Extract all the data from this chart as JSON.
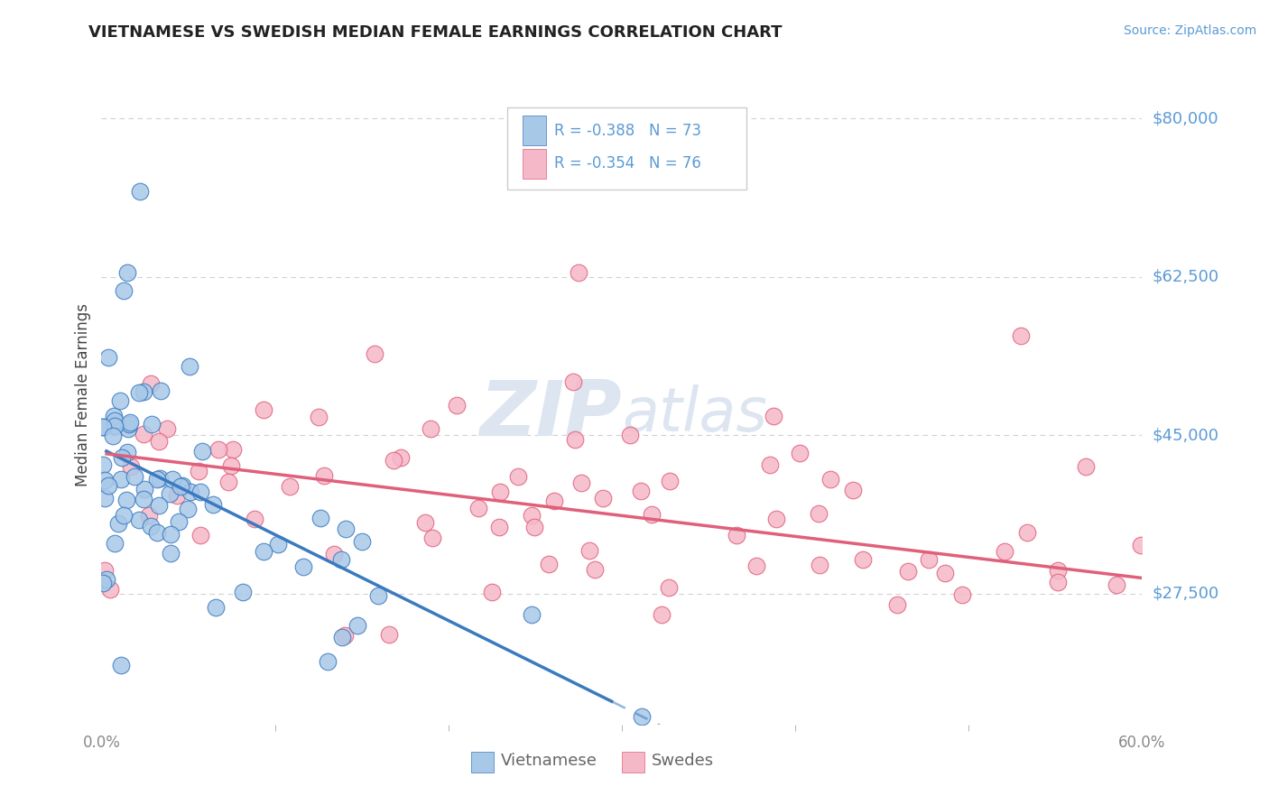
{
  "title": "VIETNAMESE VS SWEDISH MEDIAN FEMALE EARNINGS CORRELATION CHART",
  "source": "Source: ZipAtlas.com",
  "ylabel": "Median Female Earnings",
  "xmin": 0.0,
  "xmax": 0.6,
  "ymin": 13000,
  "ymax": 86000,
  "viet_color": "#a8c8e8",
  "swede_color": "#f5b8c8",
  "viet_line_color": "#3a7abf",
  "swede_line_color": "#e0607a",
  "grid_color": "#cccccc",
  "bg_color": "#ffffff",
  "title_color": "#222222",
  "axis_label_color": "#5b9bd5",
  "watermark_color": "#dce5f0",
  "viet_intercept": 43500,
  "viet_slope": -95000,
  "swede_intercept": 43000,
  "swede_slope": -23000,
  "viet_line_xstart": 0.002,
  "viet_line_xend": 0.295,
  "viet_dash_xstart": 0.295,
  "viet_dash_xend": 0.6,
  "swede_line_xstart": 0.002,
  "swede_line_xend": 0.6,
  "legend_R1": "R = -0.388",
  "legend_N1": "N = 73",
  "legend_R2": "R = -0.354",
  "legend_N2": "N = 76",
  "ytick_vals": [
    27500,
    45000,
    62500,
    80000
  ],
  "ytick_labels": [
    "$27,500",
    "$45,000",
    "$62,500",
    "$80,000"
  ]
}
